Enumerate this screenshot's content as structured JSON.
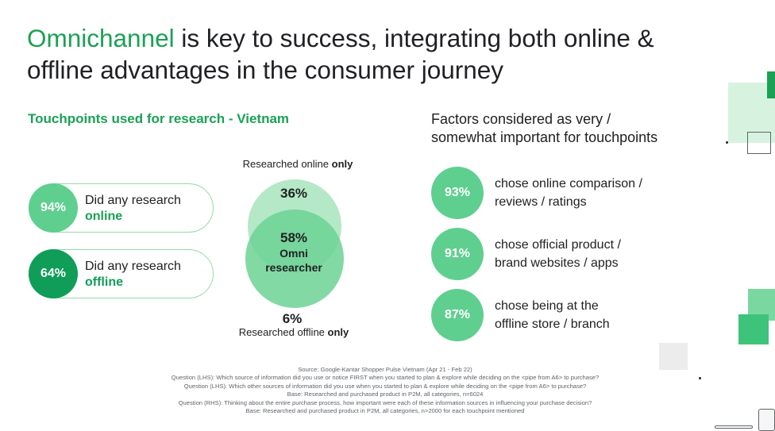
{
  "title": {
    "accent": "Omnichannel",
    "rest_line1": " is key to success, integrating both online &",
    "line2": "offline advantages in the consumer journey"
  },
  "left": {
    "heading": "Touchpoints used for research - Vietnam",
    "pills": [
      {
        "pct": "94%",
        "text": "Did any research",
        "keyword": "online",
        "color": "#5fcf8f"
      },
      {
        "pct": "64%",
        "text": "Did any research",
        "keyword": "offline",
        "color": "#0f9d58"
      }
    ]
  },
  "venn": {
    "top_label_prefix": "Researched online ",
    "top_label_bold": "only",
    "online_only_pct": "36%",
    "omni_pct": "58%",
    "omni_line1": "Omni",
    "omni_line2": "researcher",
    "offline_only_pct": "6%",
    "bottom_label_prefix": "Researched offline ",
    "bottom_label_bold": "only"
  },
  "right": {
    "heading_line1": "Factors considered as very /",
    "heading_line2": "somewhat important for touchpoints",
    "factors": [
      {
        "pct": "93%",
        "line1": "chose online comparison /",
        "line2": "reviews / ratings"
      },
      {
        "pct": "91%",
        "line1": "chose official product /",
        "line2": "brand websites / apps"
      },
      {
        "pct": "87%",
        "line1": "chose being at the",
        "line2": "offline store / branch"
      }
    ]
  },
  "footnotes": [
    "Source: Google-Kantar Shopper Pulse Vietnam (Apr 21 - Feb 22)",
    "Question (LHS): Which source of information did you use or notice FIRST when you started to plan & explore while deciding on the <pipe from A6> to purchase?",
    "Question (LHS): Which other sources of information did you use when you started to plan & explore while deciding on the <pipe from A6> to purchase?",
    "Base: Researched and purchased product in P2M, all categories, n=6024",
    "Question (RHS): Thinking about the entire purchase process, how important were each of these information sources in influencing your purchase decision?",
    "Base: Researched and purchased product in P2M, all categories, n>2000 for each touchpoint mentioned"
  ],
  "colors": {
    "accent_green": "#1aa155",
    "light_green": "#5fcf8f",
    "dark_green": "#0f9d58",
    "venn_top": "#b4e8c6",
    "venn_bottom": "#6cd294"
  }
}
